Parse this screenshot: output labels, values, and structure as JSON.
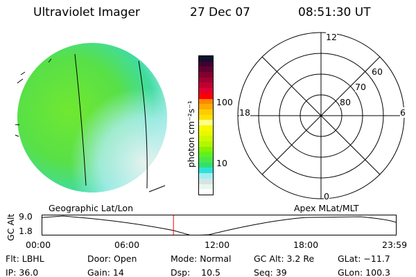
{
  "header": {
    "instrument": "Ultraviolet Imager",
    "date": "27 Dec 07",
    "time": "08:51:30 UT"
  },
  "colorbar": {
    "label": "photon cm⁻²s⁻¹",
    "ticks": [
      "100",
      "10"
    ],
    "colors": [
      "#101030",
      "#400030",
      "#600030",
      "#800030",
      "#a00030",
      "#c00030",
      "#e00030",
      "#ff0000",
      "#ff8800",
      "#ffaa00",
      "#ffcc00",
      "#ffe000",
      "#ffff88",
      "#f8f800",
      "#e8f800",
      "#d0f800",
      "#b0f800",
      "#88f000",
      "#60f020",
      "#48e848",
      "#30e070",
      "#30e0d8",
      "#a0eef2",
      "#d2e5e2",
      "#eaf5ee",
      "#ffffff"
    ]
  },
  "polar": {
    "mlt_labels": {
      "top": "12",
      "bottom": "0",
      "left": "18",
      "right": "6"
    },
    "lat_labels": [
      "60",
      "70",
      "80"
    ]
  },
  "timeline": {
    "left_label": "Geographic Lat/Lon",
    "right_label": "Apex MLat/MLT",
    "ylabel": "GC Alt",
    "y_ticks": [
      "9.0",
      "1.8"
    ],
    "x_ticks": [
      "00:00",
      "06:00",
      "12:00",
      "18:00",
      "23:59"
    ],
    "current_time_fraction": 0.371,
    "marker_color": "#ff0000"
  },
  "status": {
    "flt": "Flt: LBHL",
    "ip": "IP: 36.0",
    "door": "Door: Open",
    "gain": "Gain: 14",
    "mode": "Mode: Normal",
    "dsp": "Dsp:    10.5",
    "gcalt": "GC Alt: 3.2 Re",
    "seq": "Seq: 39",
    "glat": "GLat: −11.7",
    "glon": "GLon: 100.3"
  }
}
